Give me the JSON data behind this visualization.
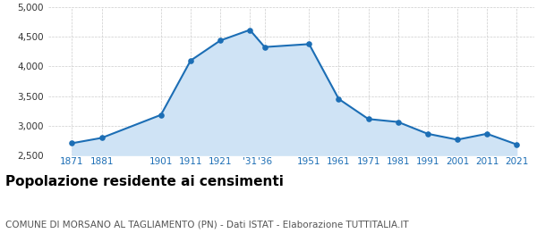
{
  "years": [
    1871,
    1881,
    1901,
    1911,
    1921,
    1931,
    1936,
    1951,
    1961,
    1971,
    1981,
    1991,
    2001,
    2011,
    2021
  ],
  "population": [
    2700,
    2790,
    3180,
    4100,
    4440,
    4620,
    4330,
    4380,
    3450,
    3110,
    3060,
    2860,
    2760,
    2860,
    2680
  ],
  "line_color": "#1c6eb5",
  "fill_color": "#cfe3f5",
  "marker_color": "#1c6eb5",
  "background_color": "#ffffff",
  "grid_color": "#cccccc",
  "ylim": [
    2500,
    5000
  ],
  "yticks": [
    2500,
    3000,
    3500,
    4000,
    4500,
    5000
  ],
  "xlabel_labels": [
    "1871",
    "1881",
    "1901",
    "1911",
    "1921",
    "'31",
    "'36",
    "1951",
    "1961",
    "1971",
    "1981",
    "1991",
    "2001",
    "2011",
    "2021"
  ],
  "title": "Popolazione residente ai censimenti",
  "subtitle": "COMUNE DI MORSANO AL TAGLIAMENTO (PN) - Dati ISTAT - Elaborazione TUTTITALIA.IT",
  "title_fontsize": 11,
  "subtitle_fontsize": 7.5,
  "tick_fontsize": 7.5
}
